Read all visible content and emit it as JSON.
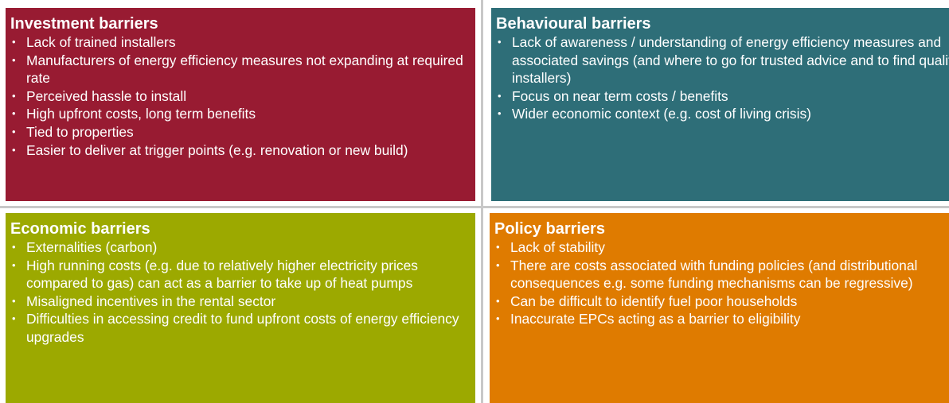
{
  "quadrants": [
    {
      "title": "Investment barriers",
      "color": "#981b32",
      "items": [
        "Lack of trained installers",
        "Manufacturers of energy efficiency measures not expanding at required rate",
        "Perceived hassle to install",
        "High upfront costs, long term benefits",
        "Tied to properties",
        "Easier to deliver at trigger points (e.g. renovation or new build)"
      ]
    },
    {
      "title": "Behavioural barriers",
      "color": "#2e6e78",
      "items": [
        "Lack of awareness / understanding of energy efficiency  measures and associated savings (and where to go for trusted advice and to find qualified installers)",
        "Focus on near term costs  / benefits",
        "Wider economic context (e.g. cost of living crisis)"
      ]
    },
    {
      "title": "Economic barriers",
      "color": "#9ca900",
      "items": [
        "Externalities (carbon)",
        "High running costs (e.g. due to relatively higher electricity prices compared to gas) can act as a barrier to take up of heat pumps",
        "Misaligned incentives in the rental sector",
        "Difficulties in accessing credit to fund upfront costs of energy efficiency upgrades"
      ]
    },
    {
      "title": "Policy barriers",
      "color": "#df7b00",
      "items": [
        "Lack of stability",
        "There are costs associated with funding policies (and distributional consequences e.g. some funding mechanisms can be regressive)",
        "Can be difficult to identify fuel poor households",
        "Inaccurate EPCs acting as a barrier to eligibility"
      ]
    }
  ]
}
